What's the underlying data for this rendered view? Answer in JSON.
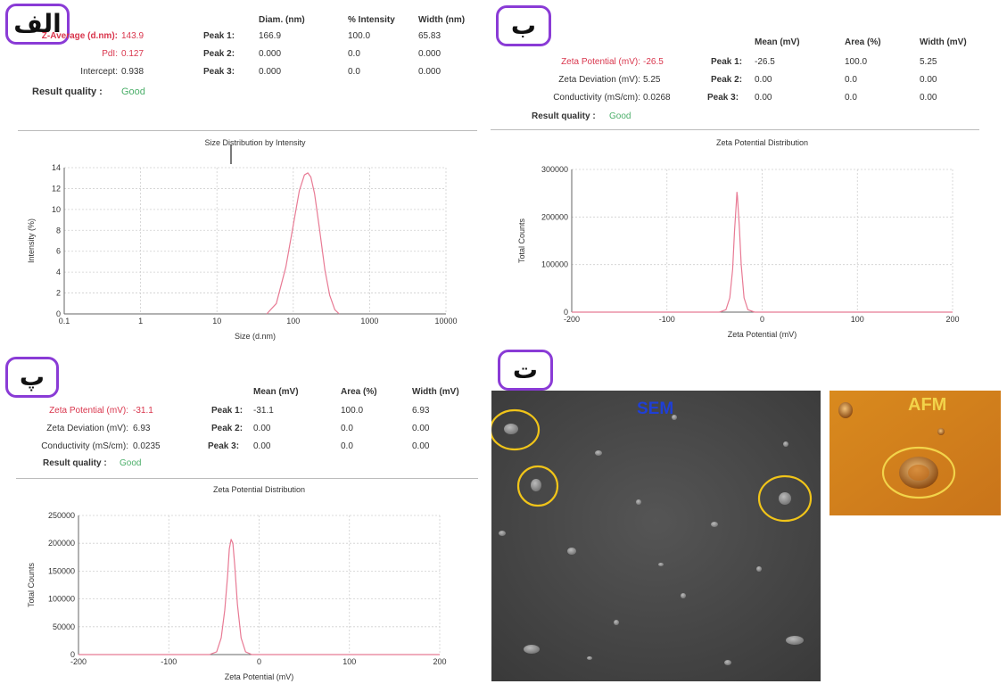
{
  "panels": [
    {
      "label": "الف",
      "rows": [
        {
          "key": "Z-Average (d.nm):",
          "value": "143.9",
          "red": true
        },
        {
          "key": "PdI:",
          "value": "0.127",
          "red": true
        },
        {
          "key": "Intercept:",
          "value": "0.938",
          "red": false
        }
      ],
      "quality_key": "Result quality :",
      "quality_value": "Good",
      "peak_headers": [
        "Diam. (nm)",
        "% Intensity",
        "Width (nm)"
      ],
      "peaks": [
        {
          "name": "Peak 1:",
          "v": [
            "166.9",
            "100.0",
            "65.83"
          ]
        },
        {
          "name": "Peak 2:",
          "v": [
            "0.000",
            "0.0",
            "0.000"
          ]
        },
        {
          "name": "Peak 3:",
          "v": [
            "0.000",
            "0.0",
            "0.000"
          ]
        }
      ]
    },
    {
      "label": "ب",
      "rows": [
        {
          "key": "Zeta Potential (mV):",
          "value": "-26.5",
          "red": true
        },
        {
          "key": "Zeta Deviation (mV):",
          "value": "5.25",
          "red": false
        },
        {
          "key": "Conductivity (mS/cm):",
          "value": "0.0268",
          "red": false
        }
      ],
      "quality_key": "Result quality :",
      "quality_value": "Good",
      "peak_headers": [
        "Mean (mV)",
        "Area (%)",
        "Width (mV)"
      ],
      "peaks": [
        {
          "name": "Peak 1:",
          "v": [
            "-26.5",
            "100.0",
            "5.25"
          ]
        },
        {
          "name": "Peak 2:",
          "v": [
            "0.00",
            "0.0",
            "0.00"
          ]
        },
        {
          "name": "Peak 3:",
          "v": [
            "0.00",
            "0.0",
            "0.00"
          ]
        }
      ]
    },
    {
      "label": "پ",
      "rows": [
        {
          "key": "Zeta Potential (mV):",
          "value": "-31.1",
          "red": true
        },
        {
          "key": "Zeta Deviation (mV):",
          "value": "6.93",
          "red": false
        },
        {
          "key": "Conductivity (mS/cm):",
          "value": "0.0235",
          "red": false
        }
      ],
      "quality_key": "Result quality :",
      "quality_value": "Good",
      "peak_headers": [
        "Mean (mV)",
        "Area (%)",
        "Width (mV)"
      ],
      "peaks": [
        {
          "name": "Peak 1:",
          "v": [
            "-31.1",
            "100.0",
            "6.93"
          ]
        },
        {
          "name": "Peak 2:",
          "v": [
            "0.00",
            "0.0",
            "0.00"
          ]
        },
        {
          "name": "Peak 3:",
          "v": [
            "0.00",
            "0.0",
            "0.00"
          ]
        }
      ]
    },
    {
      "label": "ت"
    }
  ],
  "images": {
    "sem_label": "SEM",
    "afm_label": "AFM",
    "sem_label_color": "#1f3fd6",
    "afm_label_color": "#f2d34a",
    "circle_color": "#f0c419"
  },
  "colors": {
    "curve": "#e87a94",
    "red_text": "#d9364d",
    "good_text": "#4caf6a",
    "label_border": "#8a3bd6"
  },
  "chart_data": [
    {
      "type": "line",
      "title": "Size Distribution by Intensity",
      "xlabel": "Size (d.nm)",
      "ylabel": "Intensity (%)",
      "xscale": "log",
      "xlim": [
        0.1,
        10000
      ],
      "ylim": [
        0,
        14
      ],
      "xticks": [
        0.1,
        1,
        10,
        100,
        1000,
        10000
      ],
      "xticklabels": [
        "0.1",
        "1",
        "10",
        "100",
        "1000",
        "10000"
      ],
      "yticks": [
        0,
        2,
        4,
        6,
        8,
        10,
        12,
        14
      ],
      "grid": true,
      "series": [
        {
          "x": [
            45,
            60,
            80,
            100,
            120,
            140,
            155,
            170,
            190,
            220,
            260,
            300,
            350,
            400
          ],
          "y": [
            0,
            1.0,
            4.5,
            8.5,
            11.8,
            13.3,
            13.5,
            13.1,
            11.5,
            8.2,
            4.2,
            1.8,
            0.4,
            0
          ]
        }
      ]
    },
    {
      "type": "line",
      "title": "Zeta Potential Distribution",
      "xlabel": "Zeta Potential (mV)",
      "ylabel": "Total Counts",
      "xlim": [
        -200,
        200
      ],
      "ylim": [
        0,
        300000
      ],
      "xticks": [
        -200,
        -100,
        0,
        100,
        200
      ],
      "yticks": [
        0,
        100000,
        200000,
        300000
      ],
      "grid": true,
      "series": [
        {
          "x": [
            -200,
            -45,
            -38,
            -34,
            -31,
            -29,
            -27,
            -26.5,
            -26,
            -24,
            -22,
            -19,
            -15,
            -8,
            200
          ],
          "y": [
            0,
            0,
            5000,
            30000,
            90000,
            170000,
            235000,
            252000,
            245000,
            180000,
            100000,
            30000,
            5000,
            0,
            0
          ]
        }
      ]
    },
    {
      "type": "line",
      "title": "Zeta Potential Distribution",
      "xlabel": "Zeta Potential (mV)",
      "ylabel": "Total Counts",
      "xlim": [
        -200,
        200
      ],
      "ylim": [
        0,
        250000
      ],
      "xticks": [
        -200,
        -100,
        0,
        100,
        200
      ],
      "yticks": [
        0,
        50000,
        100000,
        150000,
        200000,
        250000
      ],
      "grid": true,
      "series": [
        {
          "x": [
            -200,
            -55,
            -47,
            -42,
            -38,
            -35,
            -33,
            -31,
            -29,
            -27,
            -24,
            -20,
            -15,
            -8,
            200
          ],
          "y": [
            0,
            0,
            5000,
            30000,
            80000,
            140000,
            190000,
            207000,
            200000,
            160000,
            90000,
            30000,
            5000,
            0,
            0
          ]
        }
      ]
    }
  ]
}
